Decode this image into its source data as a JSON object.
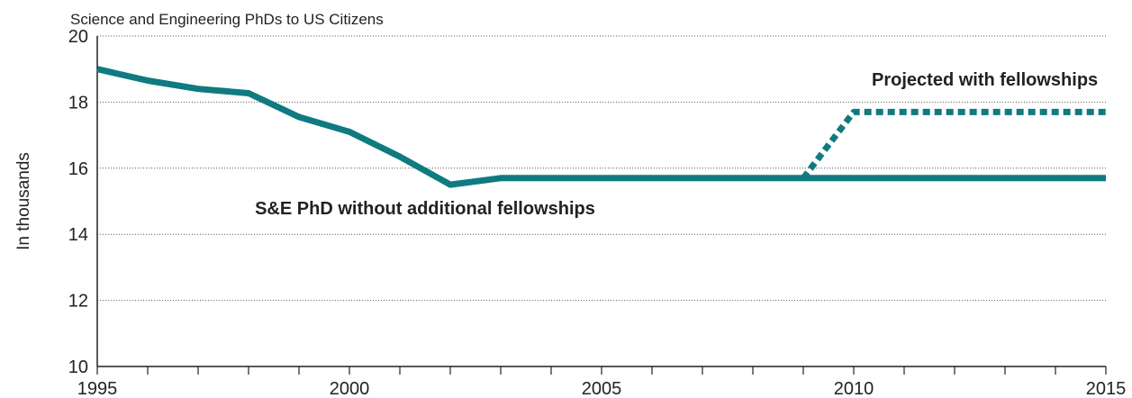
{
  "chart_data": {
    "type": "line",
    "title": "Science and Engineering PhDs to US Citizens",
    "ylabel": "In thousands",
    "xlabel": "",
    "xlim": [
      1995,
      2015
    ],
    "ylim": [
      10,
      20
    ],
    "xticks": [
      1995,
      2000,
      2005,
      2010,
      2015
    ],
    "yticks": [
      10,
      12,
      14,
      16,
      18,
      20
    ],
    "grid": "horizontal dotted",
    "series": [
      {
        "name": "S&E PhD without additional fellowships",
        "style": "solid",
        "color": "#0f7a80",
        "x": [
          1995,
          1996,
          1997,
          1998,
          1999,
          2000,
          2001,
          2002,
          2003,
          2004,
          2005,
          2006,
          2007,
          2008,
          2009,
          2010,
          2011,
          2012,
          2013,
          2014,
          2015
        ],
        "y": [
          19.0,
          18.65,
          18.4,
          18.27,
          17.55,
          17.1,
          16.35,
          15.5,
          15.7,
          15.7,
          15.7,
          15.7,
          15.7,
          15.7,
          15.7,
          15.7,
          15.7,
          15.7,
          15.7,
          15.7,
          15.7
        ]
      },
      {
        "name": "Projected with fellowships",
        "style": "dotted",
        "color": "#0f7a80",
        "x": [
          2009,
          2010,
          2011,
          2012,
          2013,
          2014,
          2015
        ],
        "y": [
          15.7,
          17.7,
          17.7,
          17.7,
          17.7,
          17.7,
          17.7
        ]
      }
    ],
    "annotations": [
      {
        "text": "Projected with fellowships",
        "x": 2012.6,
        "y": 18.5
      },
      {
        "text": "S&E PhD without additional fellowships",
        "x": 2001.5,
        "y": 14.6
      }
    ]
  }
}
